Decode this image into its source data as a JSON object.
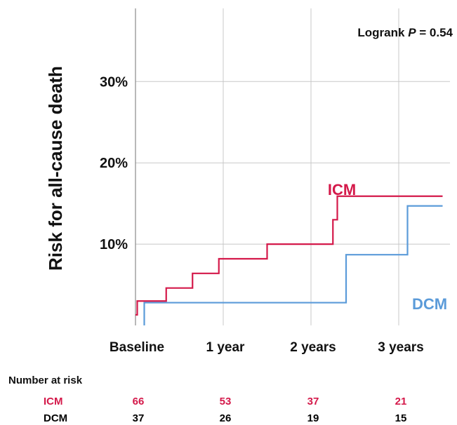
{
  "chart_data": {
    "type": "line",
    "ylabel": "Risk for all-cause death",
    "xlabel": "",
    "x_ticks": [
      {
        "value": 0,
        "label": "Baseline"
      },
      {
        "value": 1,
        "label": "1 year"
      },
      {
        "value": 2,
        "label": "2 years"
      },
      {
        "value": 3,
        "label": "3 years"
      }
    ],
    "y_ticks": [
      {
        "value": 10,
        "label": "10%"
      },
      {
        "value": 20,
        "label": "20%"
      },
      {
        "value": 30,
        "label": "30%"
      }
    ],
    "xlim": [
      0,
      3.5
    ],
    "ylim": [
      0,
      39
    ],
    "grid": true,
    "annotation": {
      "text": "Logrank",
      "p_label": "P",
      "p_value": "= 0.54"
    },
    "series": [
      {
        "name": "ICM",
        "color": "#d4194a",
        "x": [
          0,
          0.02,
          0.1,
          0.35,
          0.65,
          0.95,
          1.5,
          2.25,
          2.3,
          2.38,
          3.5
        ],
        "y": [
          1.3,
          3.0,
          3.0,
          4.6,
          6.4,
          8.2,
          10.0,
          13.0,
          15.9,
          15.9,
          15.9
        ],
        "step": true
      },
      {
        "name": "DCM",
        "color": "#5b9bd9",
        "x": [
          0,
          0.1,
          2.4,
          3.1,
          3.5
        ],
        "y": [
          0,
          2.8,
          8.7,
          14.7,
          14.7
        ],
        "step": true
      }
    ]
  },
  "risk_table": {
    "title": "Number at risk",
    "rows": [
      {
        "name": "ICM",
        "color": "#d4194a",
        "values": [
          "66",
          "53",
          "37",
          "21"
        ]
      },
      {
        "name": "DCM",
        "color": "#5b9bd9",
        "values": [
          "37",
          "26",
          "19",
          "15"
        ]
      }
    ]
  }
}
